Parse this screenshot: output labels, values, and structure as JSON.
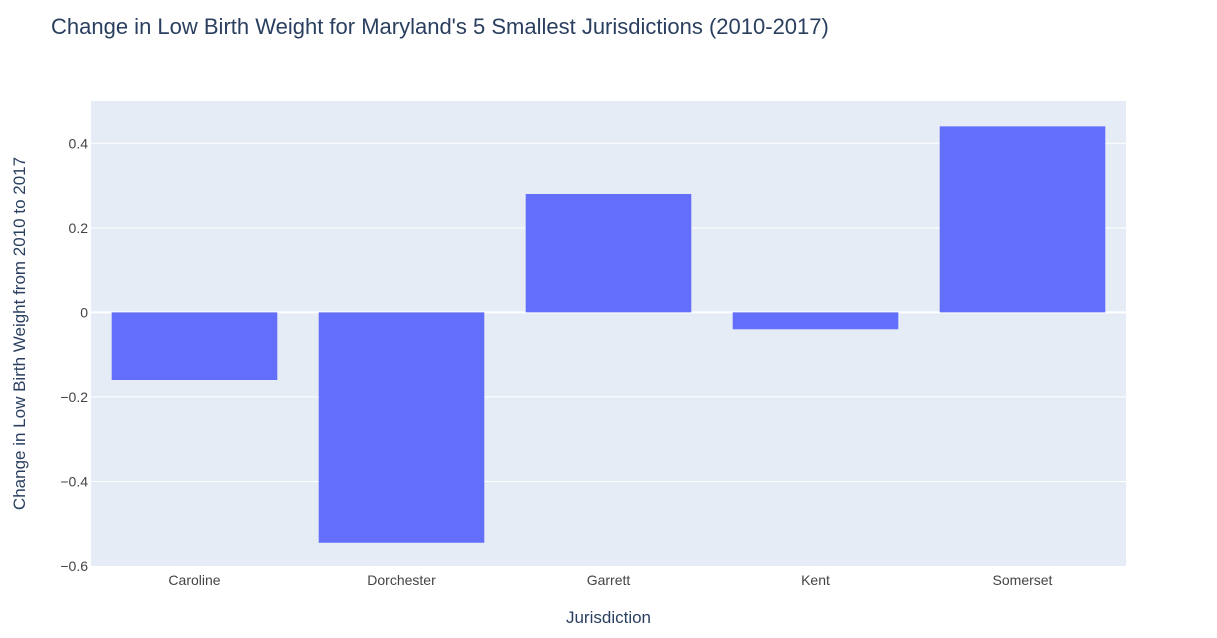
{
  "chart_data": {
    "type": "bar",
    "title": "Change in Low Birth Weight for Maryland's 5 Smallest Jurisdictions (2010-2017)",
    "xlabel": "Jurisdiction",
    "ylabel": "Change in Low Birth Weight from 2010 to 2017",
    "categories": [
      "Caroline",
      "Dorchester",
      "Garrett",
      "Kent",
      "Somerset"
    ],
    "values": [
      -0.16,
      -0.545,
      0.28,
      -0.04,
      0.44
    ],
    "ylim": [
      -0.6,
      0.5
    ],
    "yticks": [
      0.4,
      0.2,
      0,
      -0.2,
      -0.4,
      -0.6
    ],
    "ytick_labels": [
      "0.4",
      "0.2",
      "0",
      "−0.2",
      "−0.4",
      "−0.6"
    ],
    "grid": true,
    "colors": {
      "bar": "#636efa",
      "plot_bg": "#e5ecf6",
      "grid": "#ffffff",
      "text": "#2a3f5f",
      "tick_text": "#444444"
    }
  }
}
